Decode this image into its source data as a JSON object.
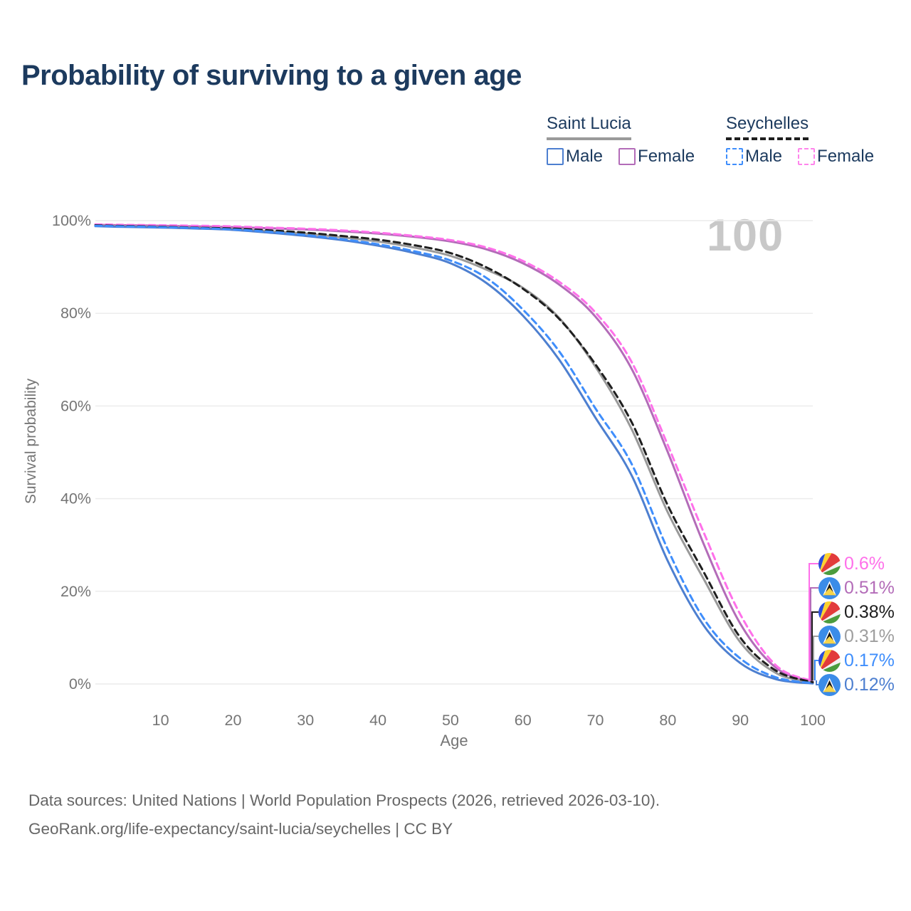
{
  "title": "Probability of surviving to a given age",
  "watermark": "100",
  "legend": {
    "groups": [
      {
        "title": "Saint Lucia",
        "line_style": "solid",
        "rule_color": "#9a9a9a",
        "items": [
          {
            "label": "Male",
            "color": "#4d7fd0"
          },
          {
            "label": "Female",
            "color": "#b36cb8"
          }
        ]
      },
      {
        "title": "Seychelles",
        "line_style": "dashed",
        "rule_color": "#1f1f1f",
        "items": [
          {
            "label": "Male",
            "color": "#3f8efc"
          },
          {
            "label": "Female",
            "color": "#ff85ec"
          }
        ]
      }
    ]
  },
  "chart_data": {
    "type": "line",
    "title": "Probability of surviving to a given age",
    "xlabel": "Age",
    "ylabel": "Survival probability",
    "x_range": [
      1,
      100
    ],
    "y_range": [
      0,
      100
    ],
    "x_ticks": [
      10,
      20,
      30,
      40,
      50,
      60,
      70,
      80,
      90,
      100
    ],
    "y_ticks": [
      0,
      20,
      40,
      60,
      80,
      100
    ],
    "grid": "horizontal",
    "ages": [
      1,
      5,
      10,
      15,
      20,
      25,
      30,
      35,
      40,
      45,
      50,
      55,
      60,
      65,
      70,
      75,
      80,
      85,
      90,
      95,
      100
    ],
    "series": [
      {
        "name": "Saint Lucia Female",
        "country": "Saint Lucia",
        "sex": "Female",
        "color": "#b36cb8",
        "dash": false,
        "values": [
          99.1,
          99.0,
          98.9,
          98.75,
          98.6,
          98.35,
          98.1,
          97.7,
          97.2,
          96.5,
          95.5,
          93.8,
          90.8,
          86.2,
          79.3,
          68.0,
          50.0,
          30.0,
          13.0,
          3.4,
          0.51
        ]
      },
      {
        "name": "Saint Lucia Total",
        "country": "Saint Lucia",
        "sex": "Both sexes",
        "color": "#9a9a9a",
        "dash": false,
        "values": [
          98.9,
          98.75,
          98.6,
          98.4,
          98.2,
          97.7,
          97.2,
          96.4,
          95.5,
          94.2,
          92.4,
          89.4,
          85.5,
          79.0,
          68.5,
          55.0,
          37.0,
          22.5,
          9.0,
          2.3,
          0.31
        ]
      },
      {
        "name": "Saint Lucia Male",
        "country": "Saint Lucia",
        "sex": "Male",
        "color": "#4d7fd0",
        "dash": false,
        "values": [
          98.8,
          98.65,
          98.5,
          98.3,
          98.0,
          97.4,
          96.7,
          95.8,
          94.6,
          93.0,
          90.8,
          86.5,
          79.5,
          70.0,
          57.5,
          45.0,
          26.5,
          12.5,
          4.5,
          1.0,
          0.12
        ]
      },
      {
        "name": "Seychelles Female",
        "country": "Seychelles",
        "sex": "Female",
        "color": "#ff70ea",
        "dash": true,
        "values": [
          99.2,
          99.1,
          99.0,
          98.9,
          98.75,
          98.5,
          98.25,
          97.9,
          97.4,
          96.7,
          95.8,
          94.2,
          91.3,
          86.8,
          80.2,
          69.5,
          51.5,
          32.5,
          15.0,
          3.9,
          0.6
        ]
      },
      {
        "name": "Seychelles Total",
        "country": "Seychelles",
        "sex": "Both sexes",
        "color": "#1f1f1f",
        "dash": true,
        "values": [
          99.0,
          98.85,
          98.7,
          98.5,
          98.3,
          97.9,
          97.4,
          96.7,
          95.9,
          94.7,
          93.0,
          89.9,
          85.3,
          78.8,
          69.0,
          56.5,
          38.5,
          24.0,
          10.0,
          2.8,
          0.38
        ]
      },
      {
        "name": "Seychelles Male",
        "country": "Seychelles",
        "sex": "Male",
        "color": "#3f8efc",
        "dash": true,
        "values": [
          98.9,
          98.75,
          98.6,
          98.4,
          98.1,
          97.6,
          96.9,
          96.0,
          94.9,
          93.4,
          91.4,
          87.6,
          80.8,
          71.8,
          59.5,
          47.5,
          29.0,
          14.0,
          5.5,
          1.4,
          0.17
        ]
      }
    ],
    "end_labels": [
      {
        "label": "0.6%",
        "color": "#ff70ea",
        "flag": "flag-seychelles",
        "series": "Seychelles Female"
      },
      {
        "label": "0.51%",
        "color": "#b36cb8",
        "flag": "flag-saint-lucia",
        "series": "Saint Lucia Female"
      },
      {
        "label": "0.38%",
        "color": "#1d1d1d",
        "flag": "flag-seychelles",
        "series": "Seychelles Total"
      },
      {
        "label": "0.31%",
        "color": "#9e9e9e",
        "flag": "flag-saint-lucia",
        "series": "Saint Lucia Total"
      },
      {
        "label": "0.17%",
        "color": "#3f8efc",
        "flag": "flag-seychelles",
        "series": "Seychelles Male"
      },
      {
        "label": "0.12%",
        "color": "#4d7fd0",
        "flag": "flag-saint-lucia",
        "series": "Saint Lucia Male"
      }
    ]
  },
  "footer": {
    "line1": "Data sources: United Nations | World Population Prospects (2026, retrieved 2026-03-10).",
    "line2": "GeoRank.org/life-expectancy/saint-lucia/seychelles | CC BY"
  }
}
